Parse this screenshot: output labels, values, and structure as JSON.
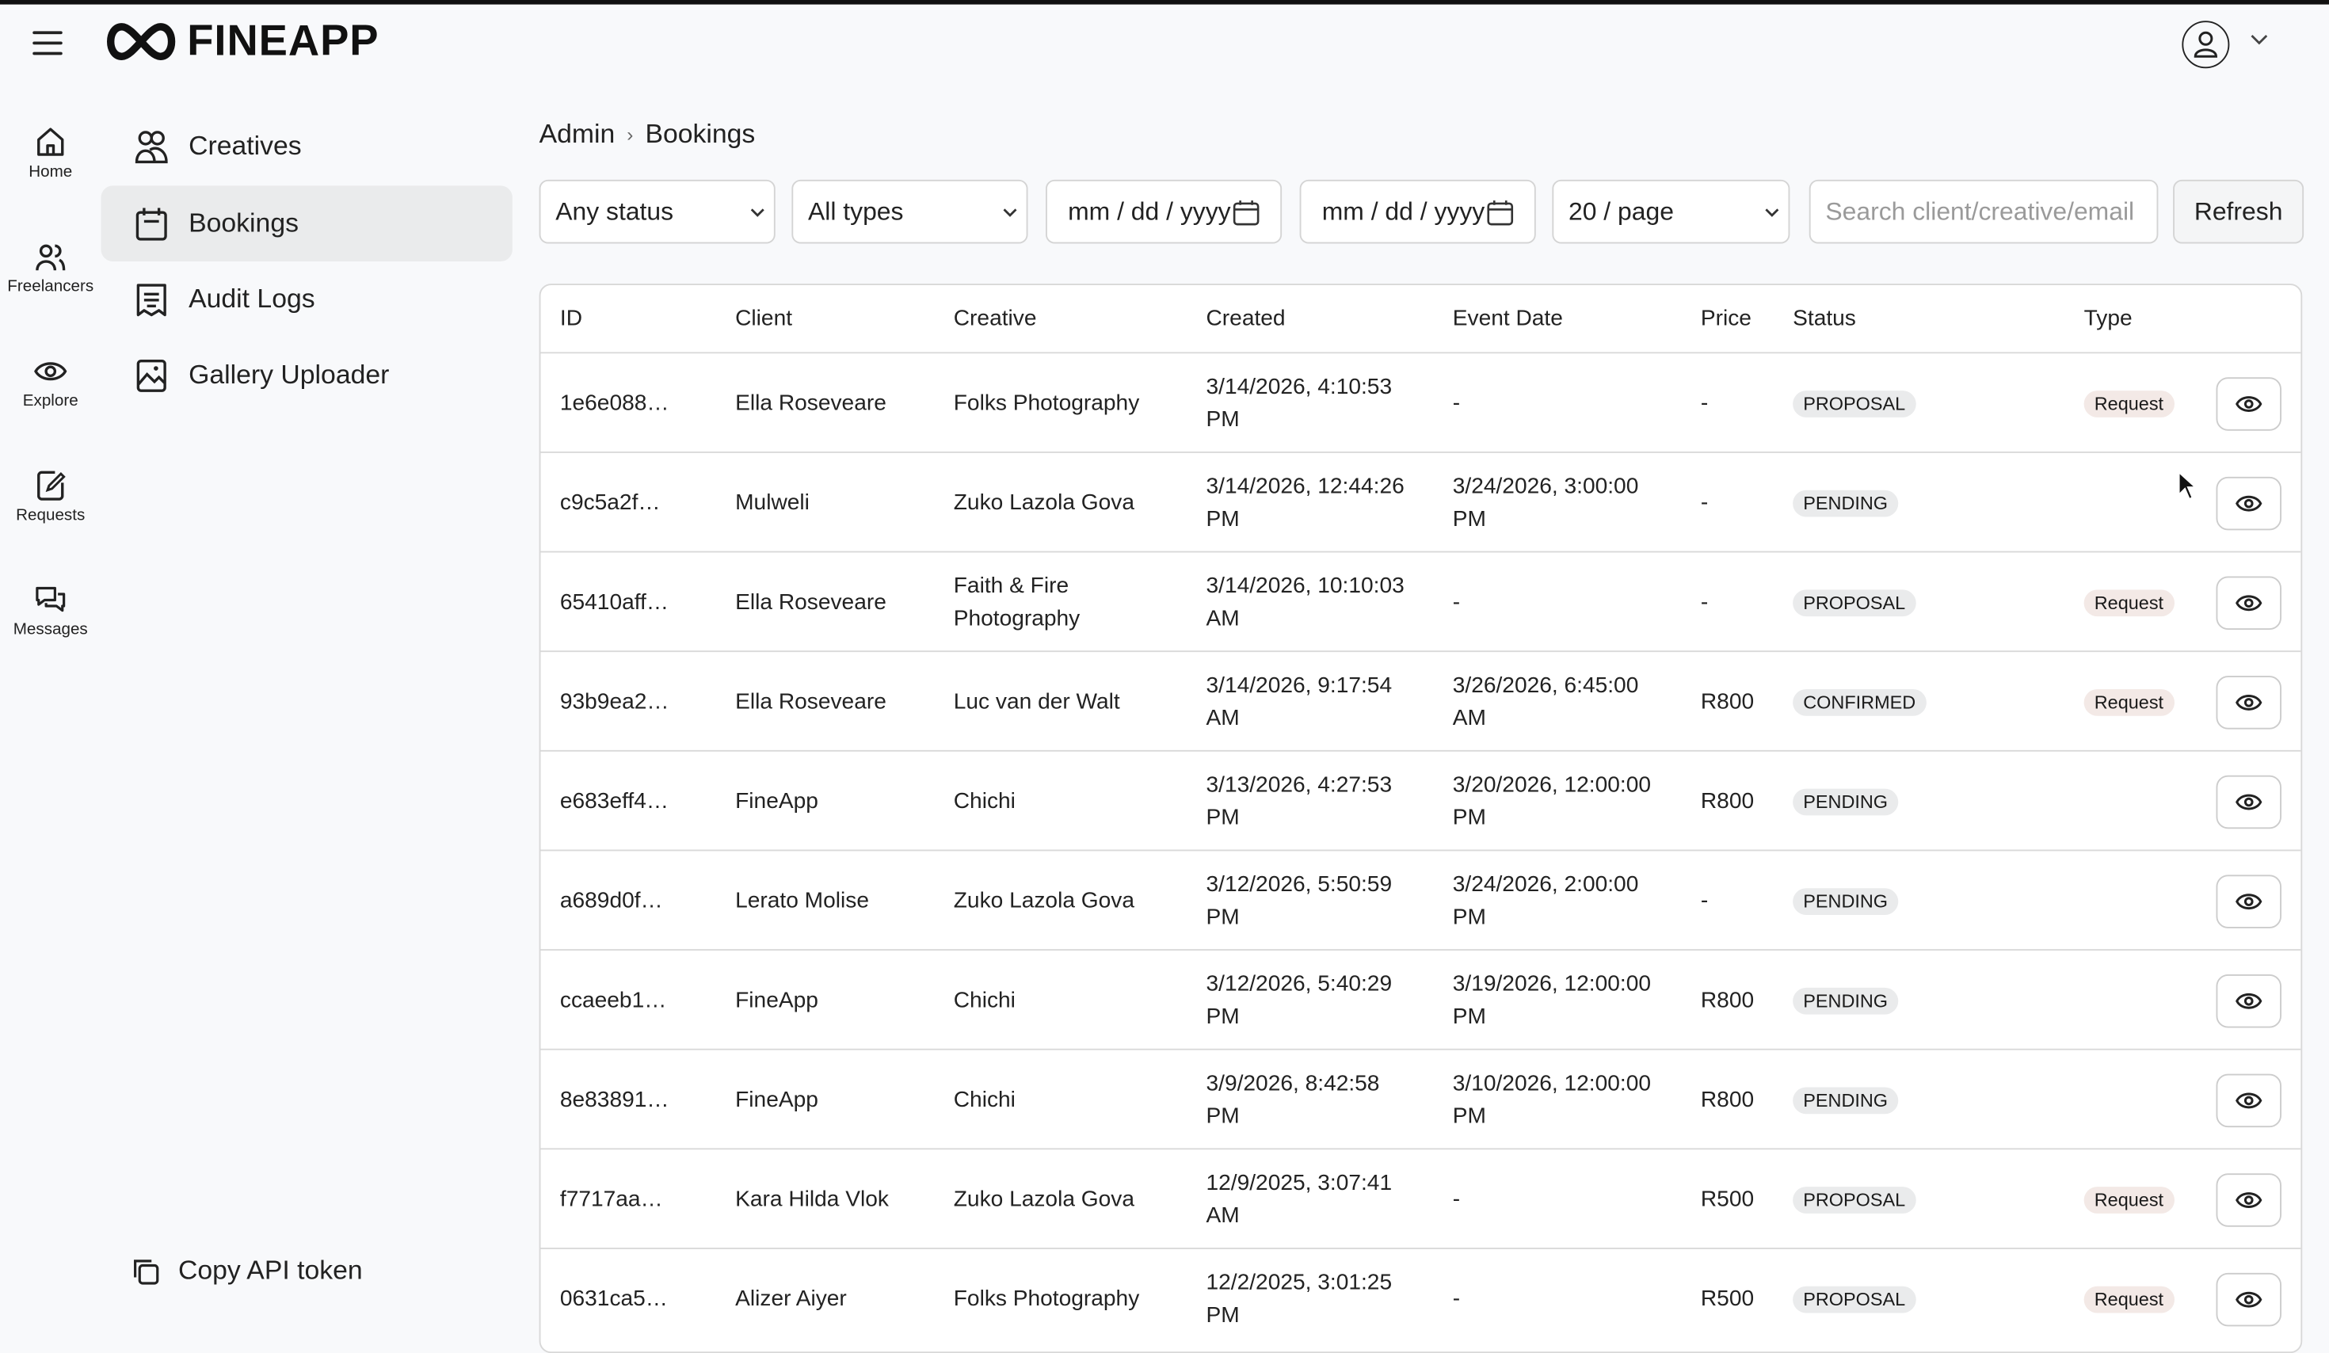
{
  "header": {
    "logo_text": "FINEAPP",
    "menu_icon": "hamburger-icon",
    "account_icon": "user-icon"
  },
  "rail": [
    {
      "label": "Home",
      "icon": "home-icon"
    },
    {
      "label": "Freelancers",
      "icon": "users-icon"
    },
    {
      "label": "Explore",
      "icon": "eye-icon"
    },
    {
      "label": "Requests",
      "icon": "edit-document-icon"
    },
    {
      "label": "Messages",
      "icon": "chat-icon"
    }
  ],
  "nav": [
    {
      "label": "Creatives",
      "icon": "people-icon"
    },
    {
      "label": "Bookings",
      "icon": "calendar-icon",
      "active": true
    },
    {
      "label": "Audit Logs",
      "icon": "receipt-icon"
    },
    {
      "label": "Gallery Uploader",
      "icon": "image-icon"
    }
  ],
  "copy_token": "Copy API token",
  "breadcrumb": [
    "Admin",
    "Bookings"
  ],
  "filters": {
    "status": "Any status",
    "type": "All types",
    "date_from_placeholder": "mm / dd / yyyy",
    "date_to_placeholder": "mm / dd / yyyy",
    "page_size": "20 / page",
    "search_placeholder": "Search client/creative/email",
    "refresh": "Refresh"
  },
  "columns": [
    "ID",
    "Client",
    "Creative",
    "Created",
    "Event Date",
    "Price",
    "Status",
    "Type"
  ],
  "rows": [
    {
      "id": "1e6e088…",
      "client": "Ella Roseveare",
      "creative": "Folks Photography",
      "created": [
        "3/14/2026, 4:10:53",
        "PM"
      ],
      "event": [
        "-"
      ],
      "price": "-",
      "status": "PROPOSAL",
      "type": "Request"
    },
    {
      "id": "c9c5a2f…",
      "client": "Mulweli",
      "creative": "Zuko Lazola Gova",
      "created": [
        "3/14/2026, 12:44:26",
        "PM"
      ],
      "event": [
        "3/24/2026, 3:00:00",
        "PM"
      ],
      "price": "-",
      "status": "PENDING",
      "type": ""
    },
    {
      "id": "65410aff…",
      "client": "Ella Roseveare",
      "creative": "Faith & Fire Photography",
      "created": [
        "3/14/2026, 10:10:03",
        "AM"
      ],
      "event": [
        "-"
      ],
      "price": "-",
      "status": "PROPOSAL",
      "type": "Request"
    },
    {
      "id": "93b9ea2…",
      "client": "Ella Roseveare",
      "creative": "Luc van der Walt",
      "created": [
        "3/14/2026, 9:17:54",
        "AM"
      ],
      "event": [
        "3/26/2026, 6:45:00",
        "AM"
      ],
      "price": "R800",
      "status": "CONFIRMED",
      "type": "Request"
    },
    {
      "id": "e683eff4…",
      "client": "FineApp",
      "creative": "Chichi",
      "created": [
        "3/13/2026, 4:27:53",
        "PM"
      ],
      "event": [
        "3/20/2026, 12:00:00",
        "PM"
      ],
      "price": "R800",
      "status": "PENDING",
      "type": ""
    },
    {
      "id": "a689d0f…",
      "client": "Lerato Molise",
      "creative": "Zuko Lazola Gova",
      "created": [
        "3/12/2026, 5:50:59",
        "PM"
      ],
      "event": [
        "3/24/2026, 2:00:00",
        "PM"
      ],
      "price": "-",
      "status": "PENDING",
      "type": ""
    },
    {
      "id": "ccaeeb1…",
      "client": "FineApp",
      "creative": "Chichi",
      "created": [
        "3/12/2026, 5:40:29",
        "PM"
      ],
      "event": [
        "3/19/2026, 12:00:00",
        "PM"
      ],
      "price": "R800",
      "status": "PENDING",
      "type": ""
    },
    {
      "id": "8e83891…",
      "client": "FineApp",
      "creative": "Chichi",
      "created": [
        "3/9/2026, 8:42:58",
        "PM"
      ],
      "event": [
        "3/10/2026, 12:00:00",
        "PM"
      ],
      "price": "R800",
      "status": "PENDING",
      "type": ""
    },
    {
      "id": "f7717aa…",
      "client": "Kara Hilda Vlok",
      "creative": "Zuko Lazola Gova",
      "created": [
        "12/9/2025, 3:07:41",
        "AM"
      ],
      "event": [
        "-"
      ],
      "price": "R500",
      "status": "PROPOSAL",
      "type": "Request"
    },
    {
      "id": "0631ca5…",
      "client": "Alizer Aiyer",
      "creative": "Folks Photography",
      "created": [
        "12/2/2025, 3:01:25",
        "PM"
      ],
      "event": [
        "-"
      ],
      "price": "R500",
      "status": "PROPOSAL",
      "type": "Request"
    }
  ]
}
